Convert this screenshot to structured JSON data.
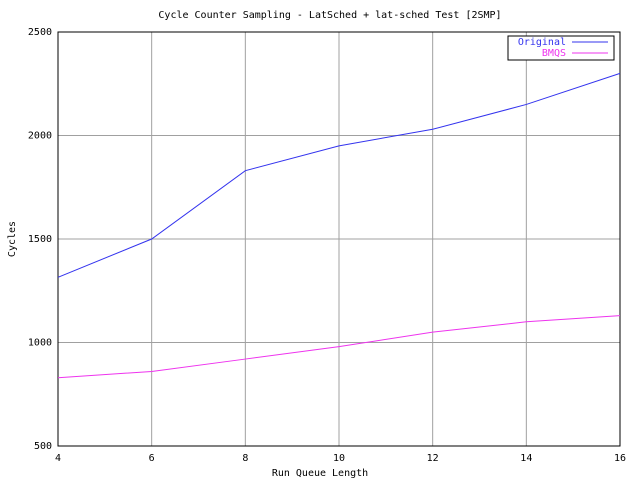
{
  "chart_data": {
    "type": "line",
    "title": "Cycle Counter Sampling - LatSched + lat-sched Test [2SMP]",
    "x_label": "Run Queue Length",
    "y_label": "Cycles",
    "x": [
      4,
      6,
      8,
      10,
      12,
      14,
      16
    ],
    "series": [
      {
        "name": "Original",
        "color": "#3333ee",
        "values": [
          1315,
          1500,
          1830,
          1950,
          2030,
          2150,
          2300
        ]
      },
      {
        "name": "BMQS",
        "color": "#ee33ee",
        "values": [
          830,
          860,
          920,
          980,
          1050,
          1100,
          1130
        ]
      }
    ],
    "xlim": [
      4,
      16
    ],
    "xticks": [
      4,
      6,
      8,
      10,
      12,
      14,
      16
    ],
    "ylim": [
      500,
      2500
    ],
    "yticks": [
      500,
      1000,
      1500,
      2000,
      2500
    ],
    "grid": true,
    "legend": "top-right"
  }
}
